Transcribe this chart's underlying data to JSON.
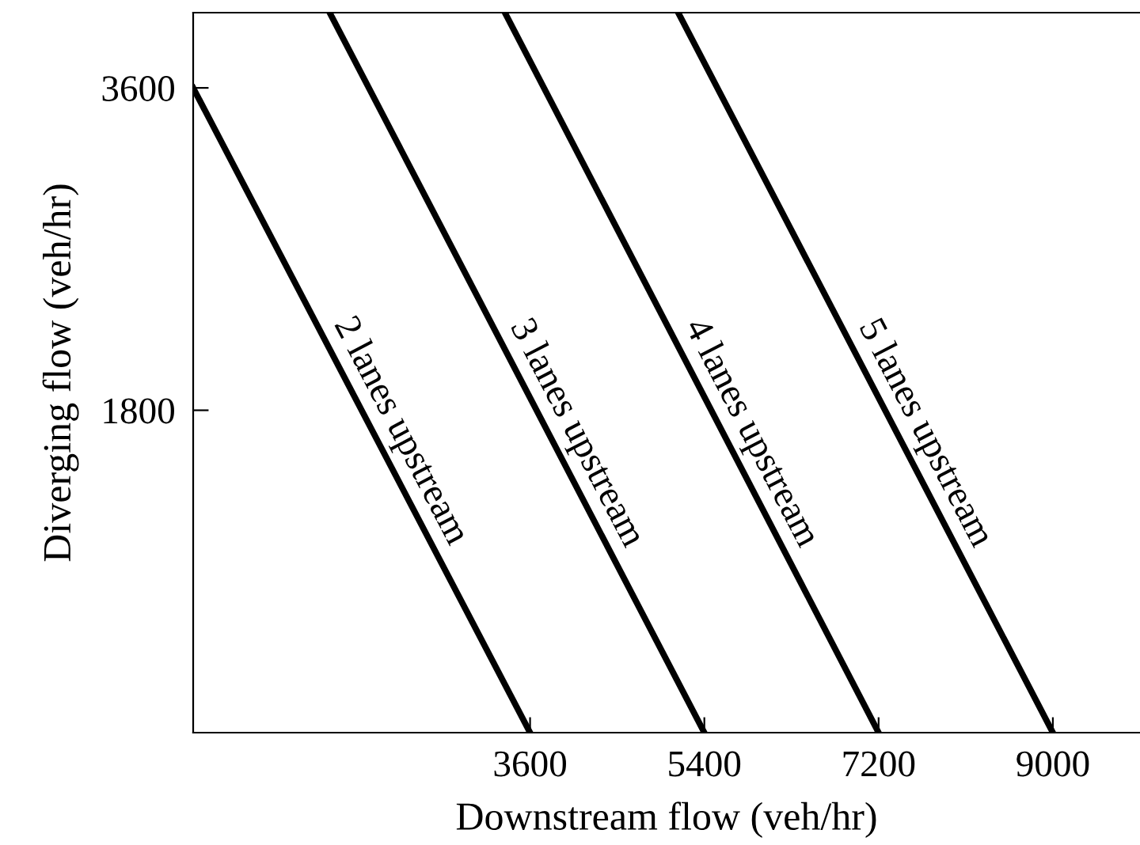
{
  "chart_data": {
    "type": "line",
    "xlabel": "Downstream flow (veh/hr)",
    "ylabel": "Diverging flow (veh/hr)",
    "xlim": [
      120,
      9900
    ],
    "ylim": [
      0,
      4020
    ],
    "xticks": [
      3600,
      5400,
      7200,
      9000
    ],
    "yticks": [
      1800,
      3600
    ],
    "grid": false,
    "legend": false,
    "marker": "none",
    "line_style": "solid",
    "series": [
      {
        "name": "2 lanes upstream",
        "color": "#000000",
        "x": [
          120,
          3600
        ],
        "values": [
          3600,
          0
        ]
      },
      {
        "name": "3 lanes upstream",
        "color": "#000000",
        "x": [
          1530,
          5400
        ],
        "values": [
          4020,
          0
        ]
      },
      {
        "name": "4 lanes upstream",
        "color": "#000000",
        "x": [
          3340,
          7200
        ],
        "values": [
          4020,
          0
        ]
      },
      {
        "name": "5 lanes upstream",
        "color": "#000000",
        "x": [
          5130,
          9000
        ],
        "values": [
          4020,
          0
        ]
      }
    ]
  }
}
